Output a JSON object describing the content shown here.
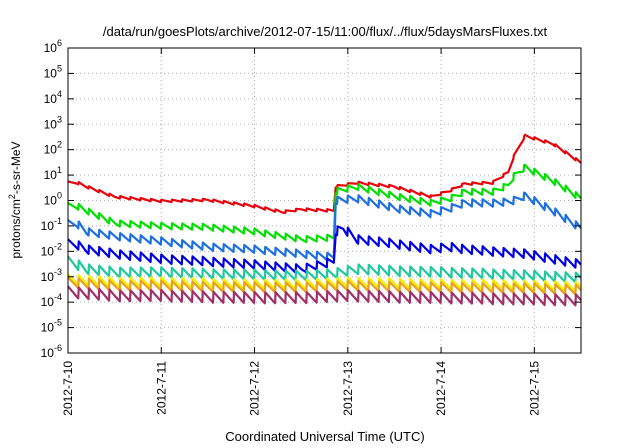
{
  "chart_data": {
    "type": "line",
    "title": "/data/run/goesPlots/archive/2012-07-15/11:00/flux/../flux/5daysMarsFluxes.txt",
    "xlabel": "Coordinated Universal Time (UTC)",
    "ylabel_base": "protons/cm",
    "ylabel_sup": "2",
    "ylabel_rest": "-s-sr-MeV",
    "x_ticks": [
      "2012-7-10",
      "2012-7-11",
      "2012-7-12",
      "2012-7-13",
      "2012-7-14",
      "2012-7-15"
    ],
    "x_tick_days": [
      0,
      1,
      2,
      3,
      4,
      5
    ],
    "xlim_days": [
      0,
      5.5
    ],
    "y_scale": "log",
    "y_tick_exponents": [
      -6,
      -5,
      -4,
      -3,
      -2,
      -1,
      0,
      1,
      2,
      3,
      4,
      5,
      6
    ],
    "ylim": [
      1e-06,
      1000000.0
    ],
    "grid": true,
    "sawtooth_periods_per_day": 9,
    "series": [
      {
        "color": "#e8000b",
        "profile": [
          [
            0,
            5
          ],
          [
            0.1,
            5
          ],
          [
            0.2,
            3.5
          ],
          [
            0.5,
            1.4
          ],
          [
            1,
            0.95
          ],
          [
            1.5,
            1.05
          ],
          [
            2,
            0.6
          ],
          [
            2.3,
            0.35
          ],
          [
            2.5,
            0.45
          ],
          [
            2.85,
            0.4
          ],
          [
            2.87,
            3.5
          ],
          [
            3.1,
            5
          ],
          [
            3.5,
            3.5
          ],
          [
            3.9,
            1.4
          ],
          [
            4.1,
            2.5
          ],
          [
            4.25,
            4.5
          ],
          [
            4.55,
            5
          ],
          [
            4.72,
            13
          ],
          [
            4.78,
            55
          ],
          [
            4.9,
            350
          ],
          [
            5.2,
            170
          ],
          [
            5.5,
            30
          ]
        ],
        "amp": 0.1
      },
      {
        "color": "#00e000",
        "profile": [
          [
            0,
            0.6
          ],
          [
            0.1,
            0.6
          ],
          [
            0.2,
            0.4
          ],
          [
            0.5,
            0.13
          ],
          [
            1,
            0.1
          ],
          [
            1.5,
            0.09
          ],
          [
            2,
            0.06
          ],
          [
            2.5,
            0.03
          ],
          [
            2.85,
            0.035
          ],
          [
            2.87,
            2.3
          ],
          [
            3.1,
            3.5
          ],
          [
            3.5,
            1.5
          ],
          [
            3.9,
            0.8
          ],
          [
            4.1,
            1.2
          ],
          [
            4.25,
            2.2
          ],
          [
            4.55,
            2.2
          ],
          [
            4.72,
            4
          ],
          [
            4.78,
            9
          ],
          [
            4.9,
            20
          ],
          [
            5.2,
            6
          ],
          [
            5.5,
            1.2
          ]
        ],
        "amp": 0.25
      },
      {
        "color": "#1e6fe0",
        "profile": [
          [
            0,
            0.12
          ],
          [
            0.1,
            0.12
          ],
          [
            0.2,
            0.06
          ],
          [
            0.5,
            0.04
          ],
          [
            1,
            0.025
          ],
          [
            1.5,
            0.015
          ],
          [
            2,
            0.012
          ],
          [
            2.5,
            0.008
          ],
          [
            2.85,
            0.006
          ],
          [
            2.87,
            1.0
          ],
          [
            3.1,
            1.2
          ],
          [
            3.5,
            0.5
          ],
          [
            3.9,
            0.3
          ],
          [
            4.1,
            0.5
          ],
          [
            4.25,
            0.8
          ],
          [
            4.55,
            0.8
          ],
          [
            4.72,
            0.9
          ],
          [
            4.78,
            1.0
          ],
          [
            4.9,
            1.5
          ],
          [
            5.2,
            0.4
          ],
          [
            5.5,
            0.08
          ]
        ],
        "amp": 0.3
      },
      {
        "color": "#0000e0",
        "profile": [
          [
            0,
            0.02
          ],
          [
            0.1,
            0.018
          ],
          [
            0.2,
            0.012
          ],
          [
            0.5,
            0.008
          ],
          [
            1,
            0.005
          ],
          [
            1.5,
            0.004
          ],
          [
            2,
            0.003
          ],
          [
            2.5,
            0.002
          ],
          [
            2.85,
            0.004
          ],
          [
            2.87,
            0.06
          ],
          [
            2.95,
            0.08
          ],
          [
            3.1,
            0.03
          ],
          [
            3.5,
            0.02
          ],
          [
            3.9,
            0.012
          ],
          [
            4.1,
            0.015
          ],
          [
            4.25,
            0.012
          ],
          [
            4.55,
            0.01
          ],
          [
            4.72,
            0.009
          ],
          [
            4.9,
            0.008
          ],
          [
            5.2,
            0.005
          ],
          [
            5.5,
            0.003
          ]
        ],
        "amp": 0.35
      },
      {
        "color": "#20c8a0",
        "profile": [
          [
            0,
            0.004
          ],
          [
            0.1,
            0.003
          ],
          [
            0.2,
            0.002
          ],
          [
            0.5,
            0.0015
          ],
          [
            1,
            0.0015
          ],
          [
            1.5,
            0.0013
          ],
          [
            2,
            0.0012
          ],
          [
            2.5,
            0.0011
          ],
          [
            2.85,
            0.0013
          ],
          [
            3.1,
            0.002
          ],
          [
            3.5,
            0.0017
          ],
          [
            4,
            0.0015
          ],
          [
            4.5,
            0.0013
          ],
          [
            5,
            0.0011
          ],
          [
            5.5,
            0.0009
          ]
        ],
        "amp": 0.4
      },
      {
        "color": "#f0f000",
        "profile": [
          [
            0,
            0.0008
          ],
          [
            0.5,
            0.0006
          ],
          [
            1,
            0.0006
          ],
          [
            1.5,
            0.00055
          ],
          [
            2,
            0.0005
          ],
          [
            2.5,
            0.0005
          ],
          [
            3,
            0.0006
          ],
          [
            3.5,
            0.00055
          ],
          [
            4,
            0.0005
          ],
          [
            4.5,
            0.0005
          ],
          [
            5,
            0.00045
          ],
          [
            5.5,
            0.0004
          ]
        ],
        "amp": 0.4
      },
      {
        "color": "#e8a020",
        "profile": [
          [
            0,
            0.0006
          ],
          [
            0.5,
            0.00045
          ],
          [
            1,
            0.00045
          ],
          [
            1.5,
            0.0004
          ],
          [
            2,
            0.00038
          ],
          [
            2.5,
            0.00038
          ],
          [
            3,
            0.00045
          ],
          [
            3.5,
            0.0004
          ],
          [
            4,
            0.00038
          ],
          [
            4.5,
            0.00036
          ],
          [
            5,
            0.00035
          ],
          [
            5.5,
            0.0003
          ]
        ],
        "amp": 0.4
      },
      {
        "color": "#a0306a",
        "profile": [
          [
            0,
            0.00025
          ],
          [
            0.5,
            0.00018
          ],
          [
            1,
            0.00018
          ],
          [
            1.5,
            0.00016
          ],
          [
            2,
            0.00015
          ],
          [
            2.5,
            0.00015
          ],
          [
            3,
            0.00018
          ],
          [
            3.5,
            0.00016
          ],
          [
            4,
            0.00015
          ],
          [
            4.5,
            0.00014
          ],
          [
            5,
            0.00013
          ],
          [
            5.5,
            0.00012
          ]
        ],
        "amp": 0.45
      }
    ]
  }
}
